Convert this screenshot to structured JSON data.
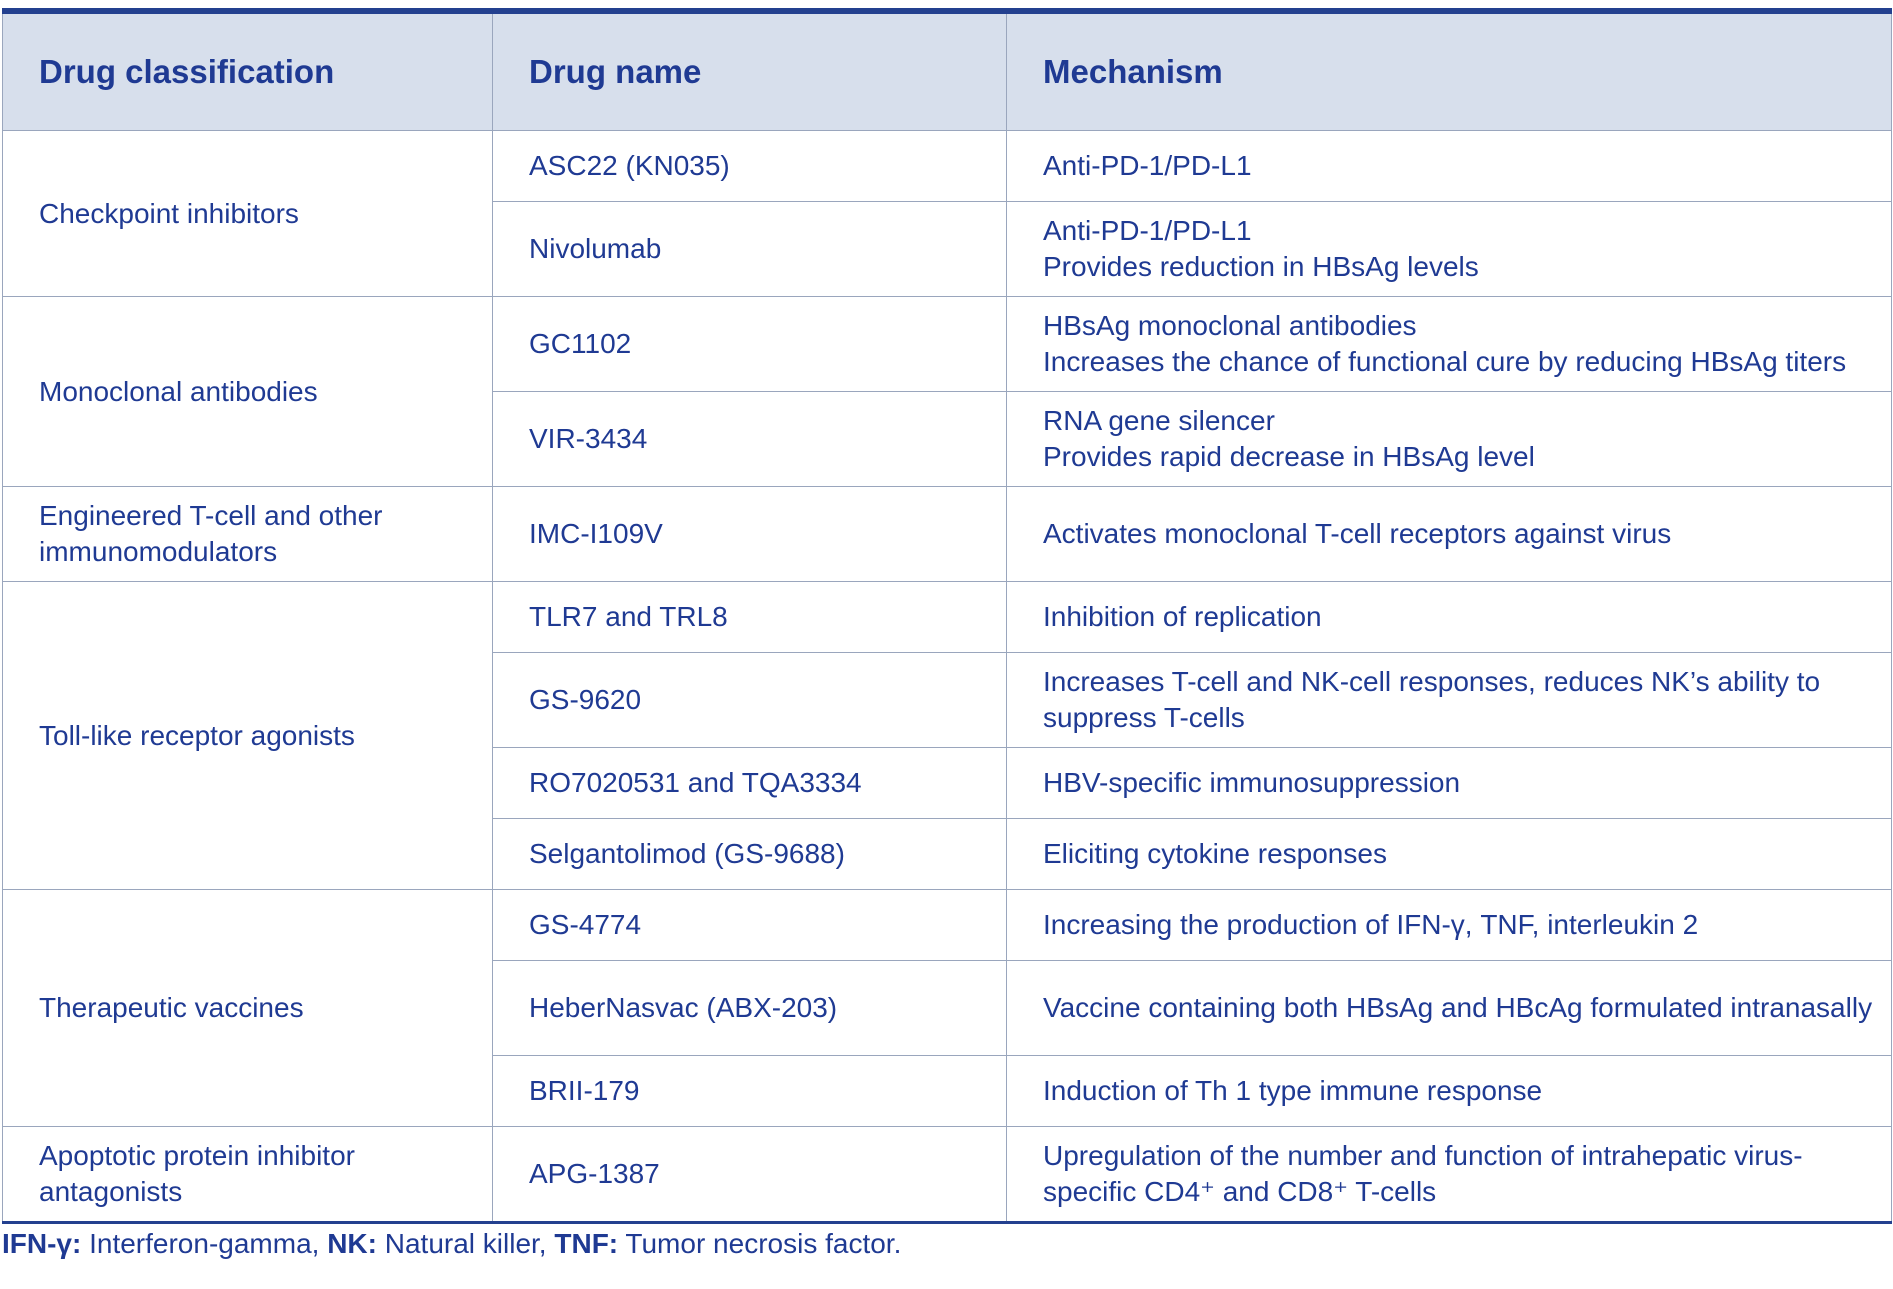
{
  "table": {
    "headers": [
      "Drug classification",
      "Drug name",
      "Mechanism"
    ],
    "groups": [
      {
        "classification": "Checkpoint inhibitors",
        "rows": [
          {
            "drug": "ASC22 (KN035)",
            "mechanism": [
              "Anti-PD-1/PD-L1"
            ]
          },
          {
            "drug": "Nivolumab",
            "mechanism": [
              "Anti-PD-1/PD-L1",
              "Provides reduction in HBsAg levels"
            ]
          }
        ]
      },
      {
        "classification": "Monoclonal antibodies",
        "rows": [
          {
            "drug": "GC1102",
            "mechanism": [
              "HBsAg monoclonal antibodies",
              "Increases the chance of functional cure by reducing HBsAg titers"
            ]
          },
          {
            "drug": "VIR-3434",
            "mechanism": [
              "RNA gene silencer",
              "Provides rapid decrease in HBsAg level"
            ]
          }
        ]
      },
      {
        "classification": "Engineered T-cell and other immunomodulators",
        "rows": [
          {
            "drug": "IMC-I109V",
            "mechanism": [
              "Activates monoclonal T-cell receptors against virus"
            ]
          }
        ]
      },
      {
        "classification": "Toll-like receptor agonists",
        "rows": [
          {
            "drug": "TLR7 and TRL8",
            "mechanism": [
              "Inhibition of replication"
            ]
          },
          {
            "drug": "GS-9620",
            "mechanism": [
              "Increases T-cell and NK-cell responses, reduces NK’s ability to suppress T-cells"
            ]
          },
          {
            "drug": "RO7020531 and TQA3334",
            "mechanism": [
              "HBV-specific immunosuppression"
            ]
          },
          {
            "drug": "Selgantolimod (GS-9688)",
            "mechanism": [
              "Eliciting cytokine responses"
            ]
          }
        ]
      },
      {
        "classification": "Therapeutic vaccines",
        "rows": [
          {
            "drug": "GS-4774",
            "mechanism": [
              "Increasing the production of IFN-γ, TNF, interleukin 2"
            ]
          },
          {
            "drug": "HeberNasvac (ABX-203)",
            "mechanism": [
              "Vaccine containing both HBsAg and HBcAg formulated intranasally"
            ]
          },
          {
            "drug": "BRII-179",
            "mechanism": [
              "Induction of Th 1 type immune response"
            ]
          }
        ]
      },
      {
        "classification": "Apoptotic protein inhibitor antagonists",
        "rows": [
          {
            "drug": "APG-1387",
            "mechanism": [
              "Upregulation of the number and function of intrahepatic virus-specific CD4⁺ and CD8⁺ T-cells"
            ]
          }
        ]
      }
    ]
  },
  "footnote": [
    {
      "abbr": "IFN-γ:",
      "text": " Interferon-gamma, "
    },
    {
      "abbr": "NK:",
      "text": " Natural killer, "
    },
    {
      "abbr": "TNF:",
      "text": " Tumor necrosis factor."
    }
  ]
}
